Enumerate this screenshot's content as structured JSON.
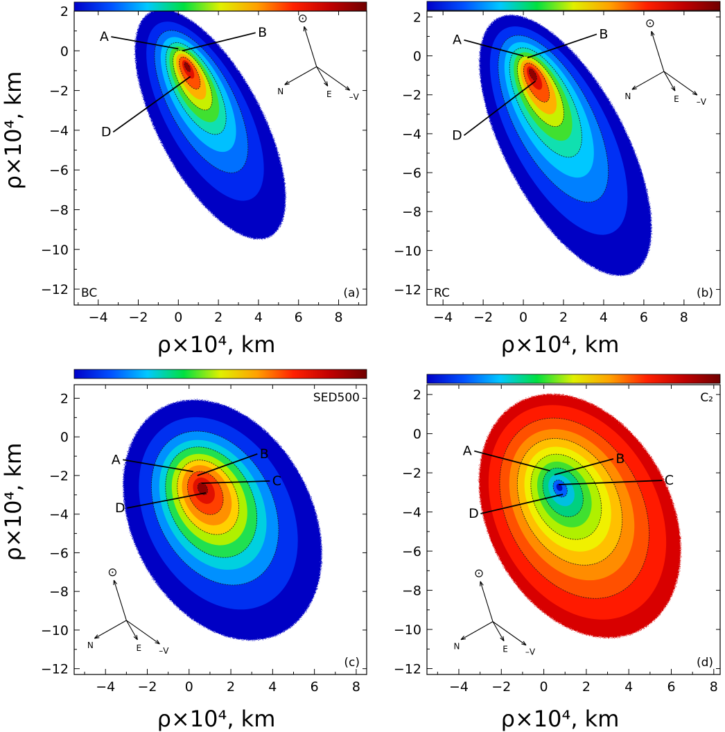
{
  "chart_data": [
    {
      "type": "heatmap",
      "panel": "(a)",
      "corner_label": "BC",
      "xlabel": "ρ×10⁴, km",
      "ylabel": "ρ×10⁴, km",
      "xlim": [
        -5.2,
        9.4
      ],
      "ylim": [
        -12.8,
        2.0
      ],
      "xticks": [
        -4,
        -2,
        0,
        2,
        4,
        6,
        8
      ],
      "yticks": [
        2,
        0,
        -2,
        -4,
        -6,
        -8,
        -10,
        -12
      ],
      "colorbar": [
        "#0000c8",
        "#0050ff",
        "#00c8ff",
        "#00e040",
        "#e0f000",
        "#ffa000",
        "#ff2000",
        "#c00000",
        "#700000"
      ],
      "cloud": {
        "center": [
          1.6,
          -3.7
        ],
        "semi_major": 6.4,
        "semi_minor": 2.6,
        "tilt_deg": 62,
        "profile": "a"
      },
      "points": [
        {
          "label": "A",
          "at": [
            0.0,
            0.1
          ],
          "text_at": [
            -3.7,
            0.5
          ]
        },
        {
          "label": "B",
          "at": [
            0.2,
            0.0
          ],
          "text_at": [
            4.2,
            0.7
          ]
        },
        {
          "label": "D",
          "at": [
            0.6,
            -1.3
          ],
          "text_at": [
            -3.6,
            -4.3
          ]
        }
      ],
      "compass": {
        "sun": "⊙",
        "n": "N",
        "e": "E",
        "v": "–V",
        "at": [
          6.9,
          -0.8
        ]
      }
    },
    {
      "type": "heatmap",
      "panel": "(b)",
      "corner_label": "RC",
      "xlabel": "ρ×10⁴, km",
      "ylabel": "",
      "xlim": [
        -4.8,
        9.8
      ],
      "ylim": [
        -12.8,
        2.3
      ],
      "xticks": [
        -4,
        -2,
        0,
        2,
        4,
        6,
        8
      ],
      "yticks": [
        2,
        0,
        -2,
        -4,
        -6,
        -8,
        -10,
        -12
      ],
      "colorbar": [
        "#0000c8",
        "#0050ff",
        "#00c8ff",
        "#00e040",
        "#e0f000",
        "#ffa000",
        "#ff2000",
        "#c00000",
        "#700000"
      ],
      "cloud": {
        "center": [
          2.1,
          -4.6
        ],
        "semi_major": 7.4,
        "semi_minor": 3.0,
        "tilt_deg": 62,
        "profile": "b"
      },
      "points": [
        {
          "label": "A",
          "at": [
            0.0,
            0.0
          ],
          "text_at": [
            -3.3,
            0.6
          ]
        },
        {
          "label": "B",
          "at": [
            0.2,
            -0.1
          ],
          "text_at": [
            4.0,
            0.9
          ]
        },
        {
          "label": "D",
          "at": [
            0.6,
            -1.3
          ],
          "text_at": [
            -3.3,
            -4.3
          ]
        }
      ],
      "compass": {
        "sun": "⊙",
        "n": "N",
        "e": "E",
        "v": "–V",
        "at": [
          7.0,
          -0.8
        ]
      }
    },
    {
      "type": "heatmap",
      "panel": "(c)",
      "corner_label": "SED500",
      "xlabel": "ρ×10⁴, km",
      "ylabel": "ρ×10⁴, km",
      "xlim": [
        -5.5,
        8.5
      ],
      "ylim": [
        -12.3,
        2.7
      ],
      "xticks": [
        -4,
        -2,
        0,
        2,
        4,
        6,
        8
      ],
      "yticks": [
        2,
        0,
        -2,
        -4,
        -6,
        -8,
        -10,
        -12
      ],
      "colorbar": [
        "#0000c8",
        "#0050ff",
        "#00c8ff",
        "#00e040",
        "#e0f000",
        "#ffa000",
        "#ff2000",
        "#c00000",
        "#700000"
      ],
      "cloud": {
        "center": [
          1.6,
          -4.3
        ],
        "semi_major": 6.6,
        "semi_minor": 4.3,
        "tilt_deg": 62,
        "profile": "c"
      },
      "points": [
        {
          "label": "A",
          "at": [
            0.2,
            -1.8
          ],
          "text_at": [
            -3.5,
            -1.4
          ]
        },
        {
          "label": "B",
          "at": [
            0.4,
            -2.0
          ],
          "text_at": [
            3.6,
            -1.1
          ]
        },
        {
          "label": "C",
          "at": [
            0.6,
            -2.4
          ],
          "text_at": [
            4.2,
            -2.5
          ]
        },
        {
          "label": "D",
          "at": [
            0.8,
            -2.9
          ],
          "text_at": [
            -3.3,
            -3.9
          ]
        }
      ],
      "compass": {
        "sun": "⊙",
        "n": "N",
        "e": "E",
        "v": "–V",
        "at": [
          -3.0,
          -9.5
        ]
      }
    },
    {
      "type": "heatmap",
      "panel": "(d)",
      "corner_label": "C₂",
      "xlabel": "ρ×10⁴, km",
      "ylabel": "",
      "xlim": [
        -5.5,
        8.3
      ],
      "ylim": [
        -12.3,
        2.5
      ],
      "xticks": [
        -4,
        -2,
        0,
        2,
        4,
        6,
        8
      ],
      "yticks": [
        2,
        0,
        -2,
        -4,
        -6,
        -8,
        -10,
        -12
      ],
      "colorbar": [
        "#0000c8",
        "#0050ff",
        "#00c8ff",
        "#00e040",
        "#e0f000",
        "#ffa000",
        "#ff2000",
        "#c00000",
        "#700000"
      ],
      "cloud": {
        "center": [
          1.7,
          -4.2
        ],
        "semi_major": 6.6,
        "semi_minor": 4.3,
        "tilt_deg": 62,
        "profile": "d"
      },
      "points": [
        {
          "label": "A",
          "at": [
            0.3,
            -1.9
          ],
          "text_at": [
            -3.6,
            -1.1
          ]
        },
        {
          "label": "B",
          "at": [
            0.5,
            -2.1
          ],
          "text_at": [
            3.6,
            -1.5
          ]
        },
        {
          "label": "C",
          "at": [
            0.7,
            -2.6
          ],
          "text_at": [
            5.9,
            -2.6
          ]
        },
        {
          "label": "D",
          "at": [
            0.9,
            -3.1
          ],
          "text_at": [
            -3.3,
            -4.3
          ]
        }
      ],
      "compass": {
        "sun": "⊙",
        "n": "N",
        "e": "E",
        "v": "–V",
        "at": [
          -2.4,
          -9.6
        ]
      }
    }
  ]
}
